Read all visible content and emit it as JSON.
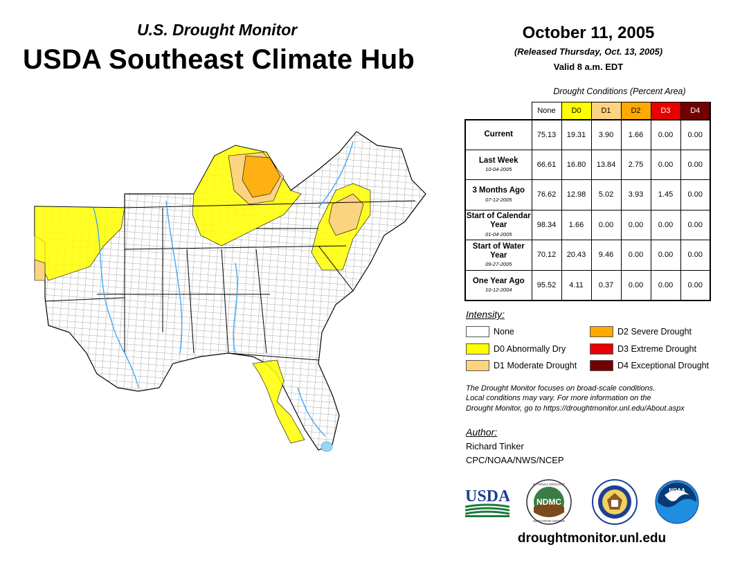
{
  "header": {
    "subtitle": "U.S. Drought Monitor",
    "title": "USDA Southeast Climate Hub",
    "date": "October 11, 2005",
    "released": "(Released Thursday, Oct. 13, 2005)",
    "valid": "Valid 8 a.m. EDT"
  },
  "table": {
    "caption": "Drought Conditions (Percent Area)",
    "columns": [
      "None",
      "D0",
      "D1",
      "D2",
      "D3",
      "D4"
    ],
    "rows": [
      {
        "label": "Current",
        "date": "",
        "values": [
          "75.13",
          "19.31",
          "3.90",
          "1.66",
          "0.00",
          "0.00"
        ]
      },
      {
        "label": "Last Week",
        "date": "10-04-2005",
        "values": [
          "66.61",
          "16.80",
          "13.84",
          "2.75",
          "0.00",
          "0.00"
        ]
      },
      {
        "label": "3 Months Ago",
        "date": "07-12-2005",
        "values": [
          "76.62",
          "12.98",
          "5.02",
          "3.93",
          "1.45",
          "0.00"
        ]
      },
      {
        "label": "Start of Calendar Year",
        "date": "01-04-2005",
        "values": [
          "98.34",
          "1.66",
          "0.00",
          "0.00",
          "0.00",
          "0.00"
        ]
      },
      {
        "label": "Start of Water Year",
        "date": "09-27-2005",
        "values": [
          "70.12",
          "20.43",
          "9.46",
          "0.00",
          "0.00",
          "0.00"
        ]
      },
      {
        "label": "One Year Ago",
        "date": "10-12-2004",
        "values": [
          "95.52",
          "4.11",
          "0.37",
          "0.00",
          "0.00",
          "0.00"
        ]
      }
    ]
  },
  "legend": {
    "title": "Intensity:",
    "items": [
      {
        "label": "None",
        "color": "#ffffff"
      },
      {
        "label": "D0 Abnormally Dry",
        "color": "#ffff00"
      },
      {
        "label": "D1 Moderate Drought",
        "color": "#fcd37f"
      },
      {
        "label": "D2 Severe Drought",
        "color": "#ffaa00"
      },
      {
        "label": "D3 Extreme Drought",
        "color": "#e60000"
      },
      {
        "label": "D4 Exceptional Drought",
        "color": "#730000"
      }
    ]
  },
  "note": {
    "line1": "The Drought Monitor focuses on broad-scale conditions.",
    "line2": "Local conditions may vary. For more information on the",
    "line3": "Drought Monitor, go to https://droughtmonitor.unl.edu/About.aspx"
  },
  "author": {
    "title": "Author:",
    "name": "Richard Tinker",
    "org": "CPC/NOAA/NWS/NCEP"
  },
  "logos": {
    "usda": "USDA",
    "ndmc": "NDMC",
    "noaa": "NOAA",
    "ndmc_ring": "NATIONAL DROUGHT MITIGATION CENTER • UNIVERSITY OF NEBRASKA"
  },
  "footer": {
    "url": "droughtmonitor.unl.edu"
  },
  "colors": {
    "water": "#9fd3f5",
    "river": "#3fa9f5",
    "none": "#ffffff"
  }
}
